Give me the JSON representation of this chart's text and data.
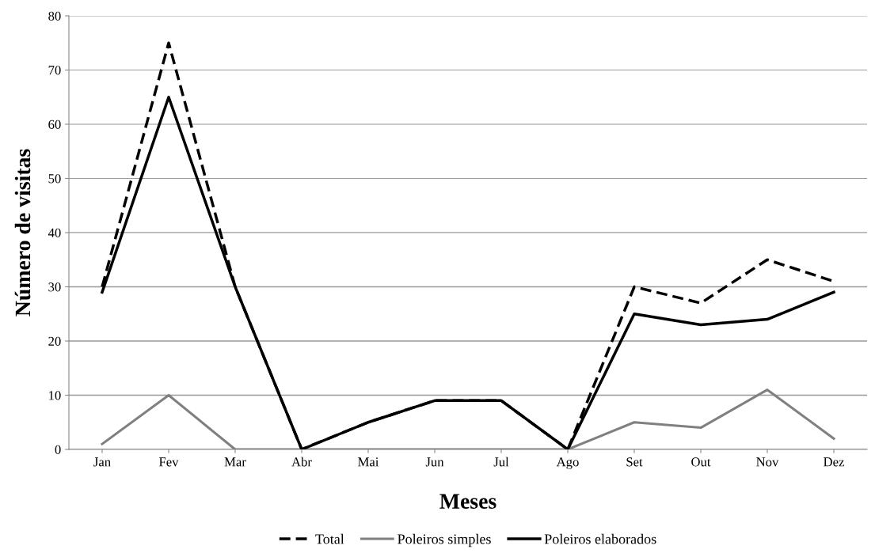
{
  "chart_data": {
    "type": "line",
    "xlabel": "Meses",
    "ylabel": "Número de visitas",
    "categories": [
      "Jan",
      "Fev",
      "Mar",
      "Abr",
      "Mai",
      "Jun",
      "Jul",
      "Ago",
      "Set",
      "Out",
      "Nov",
      "Dez"
    ],
    "series": [
      {
        "name": "Total",
        "color": "#000000",
        "line_style": "dashed",
        "values": [
          30,
          75,
          30,
          0,
          5,
          9,
          9,
          0,
          30,
          27,
          35,
          31
        ]
      },
      {
        "name": "Poleiros simples",
        "color": "#808080",
        "line_style": "solid",
        "values": [
          1,
          10,
          0,
          0,
          0,
          0,
          0,
          0,
          5,
          4,
          11,
          2
        ]
      },
      {
        "name": "Poleiros elaborados",
        "color": "#000000",
        "line_style": "solid",
        "values": [
          29,
          65,
          30,
          0,
          5,
          9,
          9,
          0,
          25,
          23,
          24,
          29
        ]
      }
    ],
    "ylim": [
      0,
      80
    ],
    "yticks": [
      0,
      10,
      20,
      30,
      40,
      50,
      60,
      70,
      80
    ],
    "grid": "y",
    "legend": "bottom",
    "marker": "none"
  }
}
